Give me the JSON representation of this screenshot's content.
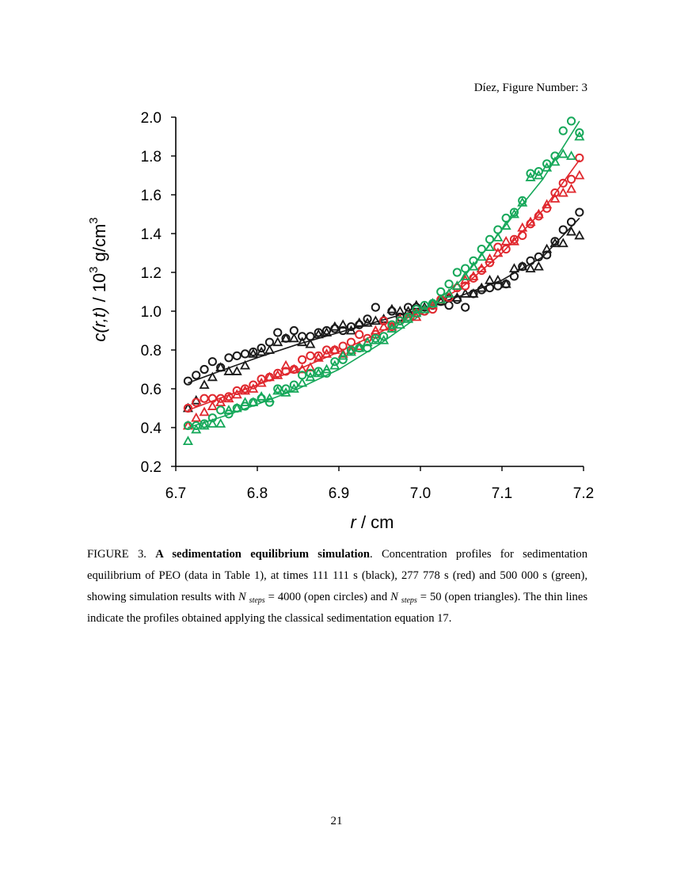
{
  "header": "Díez, Figure Number: 3",
  "page_number": "21",
  "caption": {
    "label": "FIGURE 3.",
    "title": "A sedimentation equilibrium simulation",
    "text1": ". Concentration profiles for sedimentation equilibrium of PEO (data in Table 1), at times 111 111 s (black), 277 778 s (red) and 500 000 s (green), showing simulation results with ",
    "nsym": "N",
    "sub": "steps",
    "text2": " = 4000 (open circles) and ",
    "text3": " = 50 (open triangles). The thin lines indicate the profiles obtained applying the classical sedimentation equation 17."
  },
  "chart_data": {
    "type": "scatter",
    "xlabel_var": "r",
    "xlabel_unit": " / cm",
    "ylabel_var": "c(r,t)",
    "ylabel_unit": "  / 10",
    "ylabel_exp": "3",
    "ylabel_unit2": " g/cm",
    "ylabel_exp2": "3",
    "xlim": [
      6.7,
      7.2
    ],
    "ylim": [
      0.2,
      2.0
    ],
    "xticks": [
      "6.7",
      "6.8",
      "6.9",
      "7.0",
      "7.1",
      "7.2"
    ],
    "yticks": [
      "0.2",
      "0.4",
      "0.6",
      "0.8",
      "1.0",
      "1.2",
      "1.4",
      "1.6",
      "1.8",
      "2.0"
    ],
    "series": [
      {
        "name": "111 111 s, circles",
        "color": "#1a1a1a",
        "marker": "circle",
        "x": [
          6.715,
          6.725,
          6.735,
          6.745,
          6.755,
          6.765,
          6.775,
          6.785,
          6.795,
          6.805,
          6.815,
          6.825,
          6.835,
          6.845,
          6.855,
          6.865,
          6.875,
          6.885,
          6.895,
          6.905,
          6.915,
          6.925,
          6.935,
          6.945,
          6.955,
          6.965,
          6.975,
          6.985,
          6.995,
          7.005,
          7.015,
          7.025,
          7.035,
          7.045,
          7.055,
          7.065,
          7.075,
          7.085,
          7.095,
          7.105,
          7.115,
          7.125,
          7.135,
          7.145,
          7.155,
          7.165,
          7.175,
          7.185,
          7.195
        ],
        "y": [
          0.64,
          0.67,
          0.7,
          0.74,
          0.71,
          0.76,
          0.77,
          0.78,
          0.79,
          0.81,
          0.84,
          0.89,
          0.86,
          0.9,
          0.87,
          0.87,
          0.89,
          0.9,
          0.91,
          0.9,
          0.92,
          0.93,
          0.96,
          1.02,
          0.95,
          1.0,
          0.97,
          1.02,
          1.02,
          1.0,
          1.03,
          1.05,
          1.03,
          1.06,
          1.02,
          1.09,
          1.11,
          1.12,
          1.13,
          1.14,
          1.18,
          1.23,
          1.26,
          1.28,
          1.29,
          1.36,
          1.42,
          1.46,
          1.51
        ]
      },
      {
        "name": "111 111 s, triangles",
        "color": "#1a1a1a",
        "marker": "triangle",
        "x": [
          6.715,
          6.725,
          6.735,
          6.745,
          6.755,
          6.765,
          6.775,
          6.785,
          6.795,
          6.805,
          6.815,
          6.825,
          6.835,
          6.845,
          6.855,
          6.865,
          6.875,
          6.885,
          6.895,
          6.905,
          6.915,
          6.925,
          6.935,
          6.945,
          6.955,
          6.965,
          6.975,
          6.985,
          6.995,
          7.005,
          7.015,
          7.025,
          7.035,
          7.045,
          7.055,
          7.065,
          7.075,
          7.085,
          7.095,
          7.105,
          7.115,
          7.125,
          7.135,
          7.145,
          7.155,
          7.165,
          7.175,
          7.185,
          7.195
        ],
        "y": [
          0.5,
          0.54,
          0.62,
          0.66,
          0.71,
          0.69,
          0.69,
          0.72,
          0.78,
          0.79,
          0.8,
          0.84,
          0.86,
          0.86,
          0.84,
          0.83,
          0.88,
          0.89,
          0.92,
          0.93,
          0.9,
          0.94,
          0.94,
          0.95,
          0.96,
          1.01,
          1.0,
          1.0,
          1.03,
          1.02,
          1.04,
          1.05,
          1.07,
          1.07,
          1.09,
          1.09,
          1.12,
          1.16,
          1.16,
          1.14,
          1.22,
          1.23,
          1.22,
          1.23,
          1.32,
          1.35,
          1.35,
          1.41,
          1.39
        ]
      },
      {
        "name": "277 778 s, circles",
        "color": "#e0282e",
        "marker": "circle",
        "x": [
          6.715,
          6.725,
          6.735,
          6.745,
          6.755,
          6.765,
          6.775,
          6.785,
          6.795,
          6.805,
          6.815,
          6.825,
          6.835,
          6.845,
          6.855,
          6.865,
          6.875,
          6.885,
          6.895,
          6.905,
          6.915,
          6.925,
          6.935,
          6.945,
          6.955,
          6.965,
          6.975,
          6.985,
          6.995,
          7.005,
          7.015,
          7.025,
          7.035,
          7.045,
          7.055,
          7.065,
          7.075,
          7.085,
          7.095,
          7.105,
          7.115,
          7.125,
          7.135,
          7.145,
          7.155,
          7.165,
          7.175,
          7.185,
          7.195
        ],
        "y": [
          0.5,
          0.53,
          0.55,
          0.55,
          0.55,
          0.56,
          0.59,
          0.6,
          0.62,
          0.65,
          0.66,
          0.68,
          0.69,
          0.7,
          0.75,
          0.77,
          0.77,
          0.8,
          0.8,
          0.82,
          0.84,
          0.88,
          0.86,
          0.88,
          0.95,
          0.92,
          0.95,
          0.97,
          0.99,
          1.0,
          1.01,
          1.06,
          1.07,
          1.12,
          1.13,
          1.17,
          1.21,
          1.25,
          1.33,
          1.32,
          1.37,
          1.39,
          1.45,
          1.49,
          1.53,
          1.61,
          1.66,
          1.68,
          1.79
        ]
      },
      {
        "name": "277 778 s, triangles",
        "color": "#e0282e",
        "marker": "triangle",
        "x": [
          6.715,
          6.725,
          6.735,
          6.745,
          6.755,
          6.765,
          6.775,
          6.785,
          6.795,
          6.805,
          6.815,
          6.825,
          6.835,
          6.845,
          6.855,
          6.865,
          6.875,
          6.885,
          6.895,
          6.905,
          6.915,
          6.925,
          6.935,
          6.945,
          6.955,
          6.965,
          6.975,
          6.985,
          6.995,
          7.005,
          7.015,
          7.025,
          7.035,
          7.045,
          7.055,
          7.065,
          7.075,
          7.085,
          7.095,
          7.105,
          7.115,
          7.125,
          7.135,
          7.145,
          7.155,
          7.165,
          7.175,
          7.185,
          7.195
        ],
        "y": [
          0.41,
          0.45,
          0.48,
          0.51,
          0.53,
          0.55,
          0.57,
          0.59,
          0.6,
          0.63,
          0.66,
          0.67,
          0.72,
          0.7,
          0.7,
          0.71,
          0.76,
          0.78,
          0.8,
          0.78,
          0.8,
          0.82,
          0.84,
          0.9,
          0.92,
          0.92,
          0.96,
          0.97,
          0.97,
          1.01,
          1.03,
          1.06,
          1.09,
          1.13,
          1.16,
          1.18,
          1.22,
          1.27,
          1.3,
          1.36,
          1.36,
          1.43,
          1.46,
          1.5,
          1.55,
          1.58,
          1.61,
          1.63,
          1.7
        ]
      },
      {
        "name": "500 000 s, circles",
        "color": "#16a85a",
        "marker": "circle",
        "x": [
          6.715,
          6.725,
          6.735,
          6.745,
          6.755,
          6.765,
          6.775,
          6.785,
          6.795,
          6.805,
          6.815,
          6.825,
          6.835,
          6.845,
          6.855,
          6.865,
          6.875,
          6.885,
          6.895,
          6.905,
          6.915,
          6.925,
          6.935,
          6.945,
          6.955,
          6.965,
          6.975,
          6.985,
          6.995,
          7.005,
          7.015,
          7.025,
          7.035,
          7.045,
          7.055,
          7.065,
          7.075,
          7.085,
          7.095,
          7.105,
          7.115,
          7.125,
          7.135,
          7.145,
          7.155,
          7.165,
          7.175,
          7.185,
          7.195
        ],
        "y": [
          0.41,
          0.41,
          0.42,
          0.45,
          0.49,
          0.47,
          0.5,
          0.51,
          0.53,
          0.55,
          0.53,
          0.6,
          0.6,
          0.62,
          0.67,
          0.68,
          0.69,
          0.68,
          0.74,
          0.75,
          0.8,
          0.81,
          0.81,
          0.86,
          0.87,
          0.93,
          0.95,
          0.97,
          1.01,
          1.03,
          1.04,
          1.1,
          1.14,
          1.2,
          1.22,
          1.26,
          1.32,
          1.37,
          1.42,
          1.48,
          1.51,
          1.57,
          1.71,
          1.72,
          1.76,
          1.8,
          1.93,
          1.98,
          1.92
        ]
      },
      {
        "name": "500 000 s, triangles",
        "color": "#16a85a",
        "marker": "triangle",
        "x": [
          6.715,
          6.725,
          6.735,
          6.745,
          6.755,
          6.765,
          6.775,
          6.785,
          6.795,
          6.805,
          6.815,
          6.825,
          6.835,
          6.845,
          6.855,
          6.865,
          6.875,
          6.885,
          6.895,
          6.905,
          6.915,
          6.925,
          6.935,
          6.945,
          6.955,
          6.965,
          6.975,
          6.985,
          6.995,
          7.005,
          7.015,
          7.025,
          7.035,
          7.045,
          7.055,
          7.065,
          7.075,
          7.085,
          7.095,
          7.105,
          7.115,
          7.125,
          7.135,
          7.145,
          7.155,
          7.165,
          7.175,
          7.185,
          7.195
        ],
        "y": [
          0.33,
          0.39,
          0.41,
          0.42,
          0.42,
          0.49,
          0.5,
          0.53,
          0.53,
          0.56,
          0.55,
          0.59,
          0.58,
          0.6,
          0.63,
          0.66,
          0.68,
          0.7,
          0.72,
          0.77,
          0.79,
          0.81,
          0.84,
          0.85,
          0.85,
          0.91,
          0.93,
          0.96,
          0.99,
          1.01,
          1.04,
          1.06,
          1.09,
          1.13,
          1.18,
          1.23,
          1.28,
          1.33,
          1.38,
          1.44,
          1.5,
          1.56,
          1.69,
          1.7,
          1.74,
          1.77,
          1.81,
          1.8,
          1.9
        ]
      }
    ],
    "fit_lines": [
      {
        "name": "111 111 s, classical",
        "color": "#1a1a1a",
        "x": [
          6.715,
          6.76,
          6.8,
          6.85,
          6.9,
          6.95,
          7.0,
          7.05,
          7.1,
          7.15,
          7.195
        ],
        "y": [
          0.63,
          0.7,
          0.76,
          0.83,
          0.89,
          0.95,
          1.01,
          1.08,
          1.16,
          1.28,
          1.48
        ]
      },
      {
        "name": "277 778 s, classical",
        "color": "#e0282e",
        "x": [
          6.715,
          6.76,
          6.8,
          6.85,
          6.9,
          6.95,
          7.0,
          7.05,
          7.1,
          7.15,
          7.195
        ],
        "y": [
          0.49,
          0.56,
          0.62,
          0.7,
          0.79,
          0.89,
          1.0,
          1.12,
          1.3,
          1.52,
          1.78
        ]
      },
      {
        "name": "500 000 s, classical",
        "color": "#16a85a",
        "x": [
          6.715,
          6.76,
          6.8,
          6.85,
          6.9,
          6.95,
          7.0,
          7.05,
          7.1,
          7.15,
          7.195
        ],
        "y": [
          0.4,
          0.46,
          0.52,
          0.6,
          0.7,
          0.83,
          0.98,
          1.16,
          1.42,
          1.68,
          1.98
        ]
      }
    ]
  }
}
